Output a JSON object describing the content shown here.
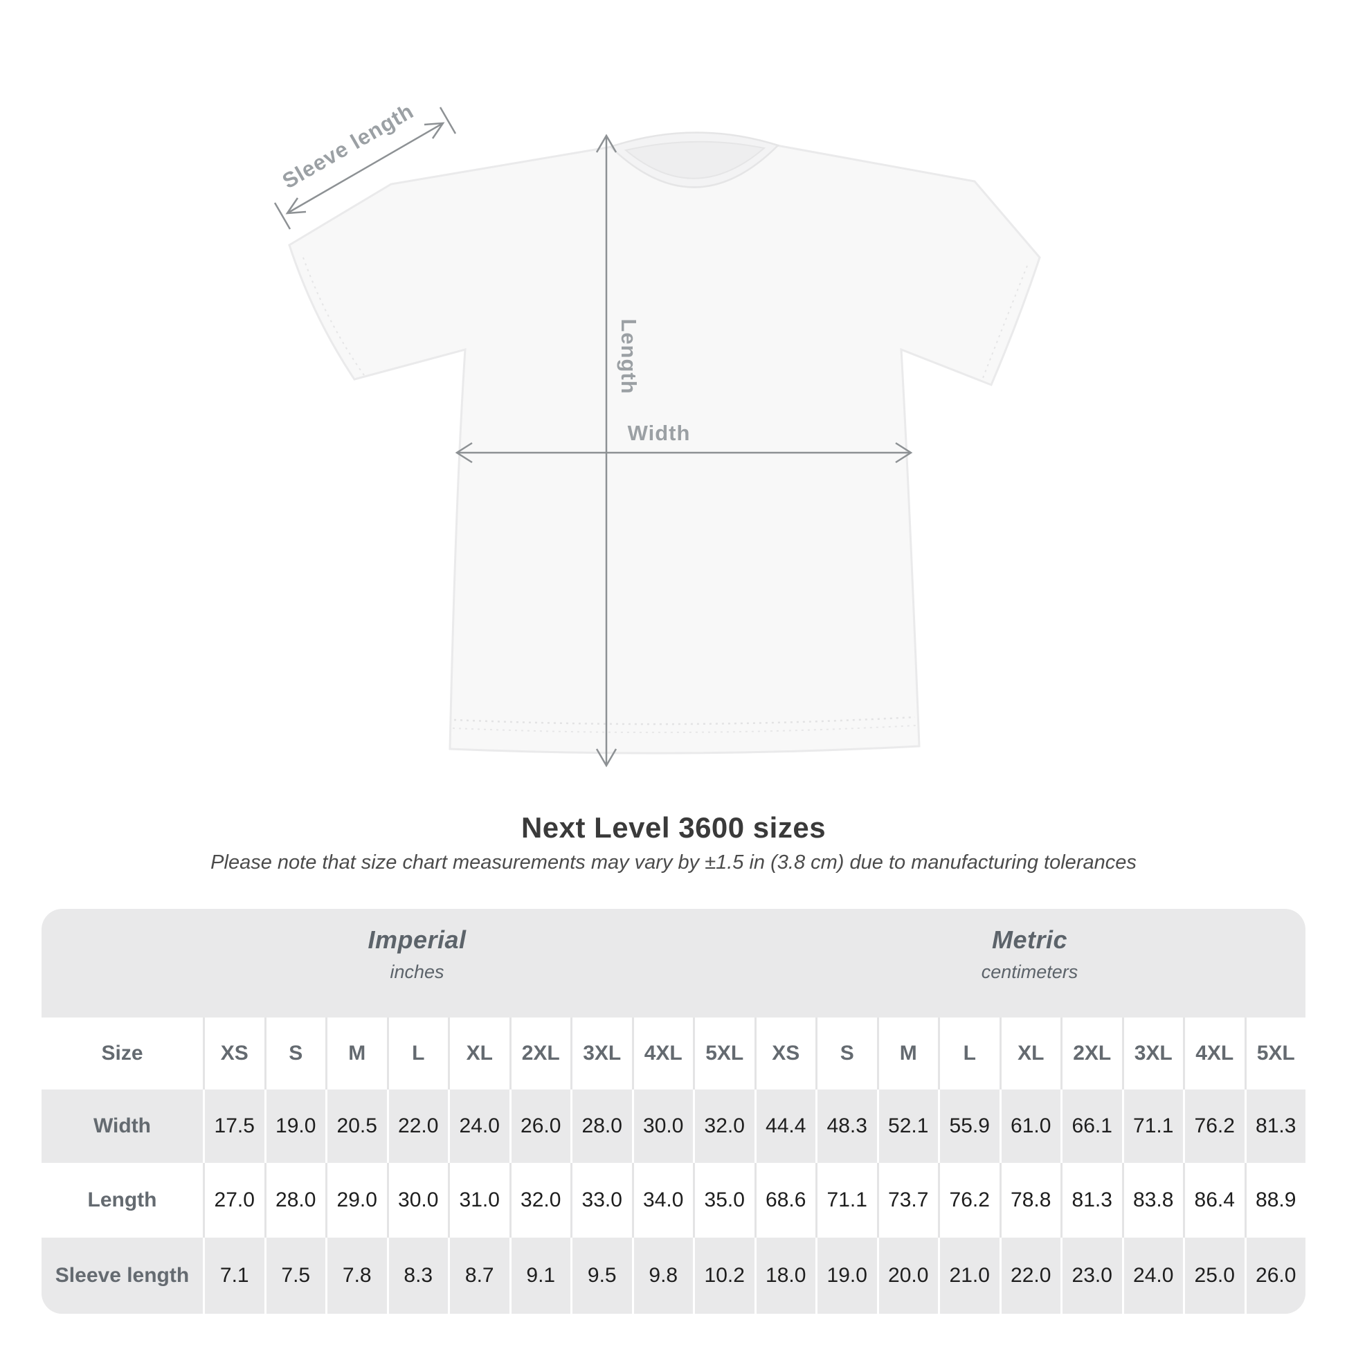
{
  "title": "Next Level 3600 sizes",
  "subtitle": "Please note that size chart measurements may vary by ±1.5 in (3.8 cm) due to manufacturing tolerances",
  "diagram": {
    "labels": {
      "sleeve_length": "Sleeve length",
      "length": "Length",
      "width": "Width"
    },
    "colors": {
      "arrow": "#8d9194",
      "label": "#9ba0a4",
      "shirt_fill": "#f8f8f8",
      "shirt_edge": "#eaeaeb",
      "table_gray": "#e9e9ea"
    }
  },
  "chart_data": {
    "type": "table",
    "title": "Next Level 3600 sizes",
    "subtitle": "Please note that size chart measurements may vary by ±1.5 in (3.8 cm) due to manufacturing tolerances",
    "corner_header": "Size",
    "column_groups": [
      {
        "label": "Imperial",
        "sublabel": "inches"
      },
      {
        "label": "Metric",
        "sublabel": "centimeters"
      }
    ],
    "sizes": [
      "XS",
      "S",
      "M",
      "L",
      "XL",
      "2XL",
      "3XL",
      "4XL",
      "5XL"
    ],
    "rows": [
      {
        "label": "Width",
        "imperial": [
          "17.5",
          "19.0",
          "20.5",
          "22.0",
          "24.0",
          "26.0",
          "28.0",
          "30.0",
          "32.0"
        ],
        "metric": [
          "44.4",
          "48.3",
          "52.1",
          "55.9",
          "61.0",
          "66.1",
          "71.1",
          "76.2",
          "81.3"
        ]
      },
      {
        "label": "Length",
        "imperial": [
          "27.0",
          "28.0",
          "29.0",
          "30.0",
          "31.0",
          "32.0",
          "33.0",
          "34.0",
          "35.0"
        ],
        "metric": [
          "68.6",
          "71.1",
          "73.7",
          "76.2",
          "78.8",
          "81.3",
          "83.8",
          "86.4",
          "88.9"
        ]
      },
      {
        "label": "Sleeve length",
        "imperial": [
          "7.1",
          "7.5",
          "7.8",
          "8.3",
          "8.7",
          "9.1",
          "9.5",
          "9.8",
          "10.2"
        ],
        "metric": [
          "18.0",
          "19.0",
          "20.0",
          "21.0",
          "22.0",
          "23.0",
          "24.0",
          "25.0",
          "26.0"
        ]
      }
    ]
  }
}
